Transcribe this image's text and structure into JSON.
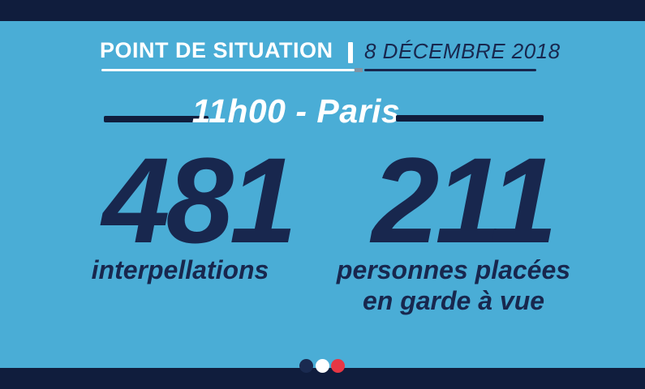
{
  "header": {
    "title": "POINT DE SITUATION",
    "separator": "|",
    "date": "8 DÉCEMBRE 2018"
  },
  "subtitle": "11h00 - Paris",
  "stats": [
    {
      "value": "481",
      "label_lines": [
        "interpellations"
      ]
    },
    {
      "value": "211",
      "label_lines": [
        "personnes placées",
        "en garde à vue"
      ]
    }
  ],
  "footer": {
    "dots": [
      "dark-blue",
      "white",
      "red"
    ]
  },
  "colors": {
    "background": "#4aadd6",
    "band_navy": "#101d3d",
    "text_navy": "#18274e",
    "white": "#ffffff",
    "red": "#e73744",
    "gray_accent": "#7f93a4"
  }
}
